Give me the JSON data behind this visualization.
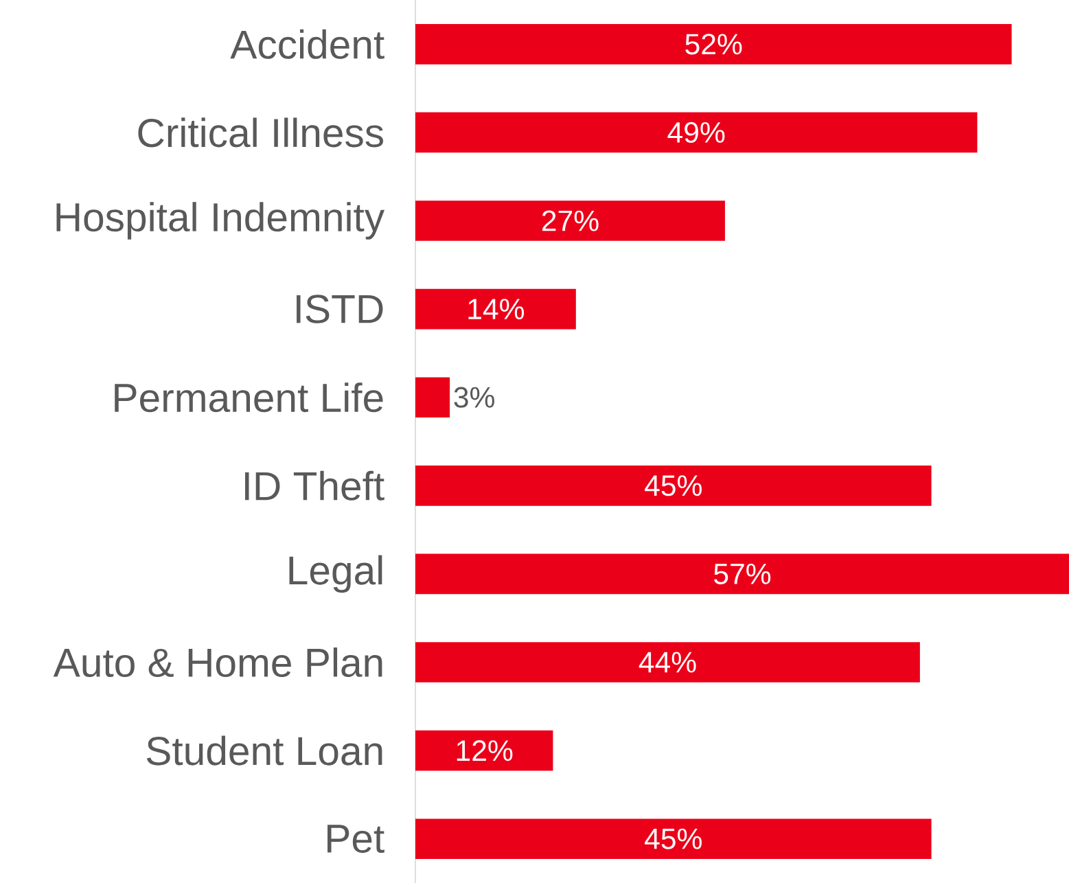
{
  "chart_data": {
    "type": "bar",
    "orientation": "horizontal",
    "categories": [
      "Accident",
      "Critical Illness",
      "Hospital Indemnity",
      "ISTD",
      "Permanent Life",
      "ID Theft",
      "Legal",
      "Auto & Home Plan",
      "Student Loan",
      "Pet"
    ],
    "values": [
      52,
      49,
      27,
      14,
      3,
      45,
      57,
      44,
      12,
      45
    ],
    "value_labels": [
      "52%",
      "49%",
      "27%",
      "14%",
      "3%",
      "45%",
      "57%",
      "44%",
      "12%",
      "45%"
    ],
    "color": "#eb0019",
    "xlim": [
      0,
      57
    ]
  }
}
